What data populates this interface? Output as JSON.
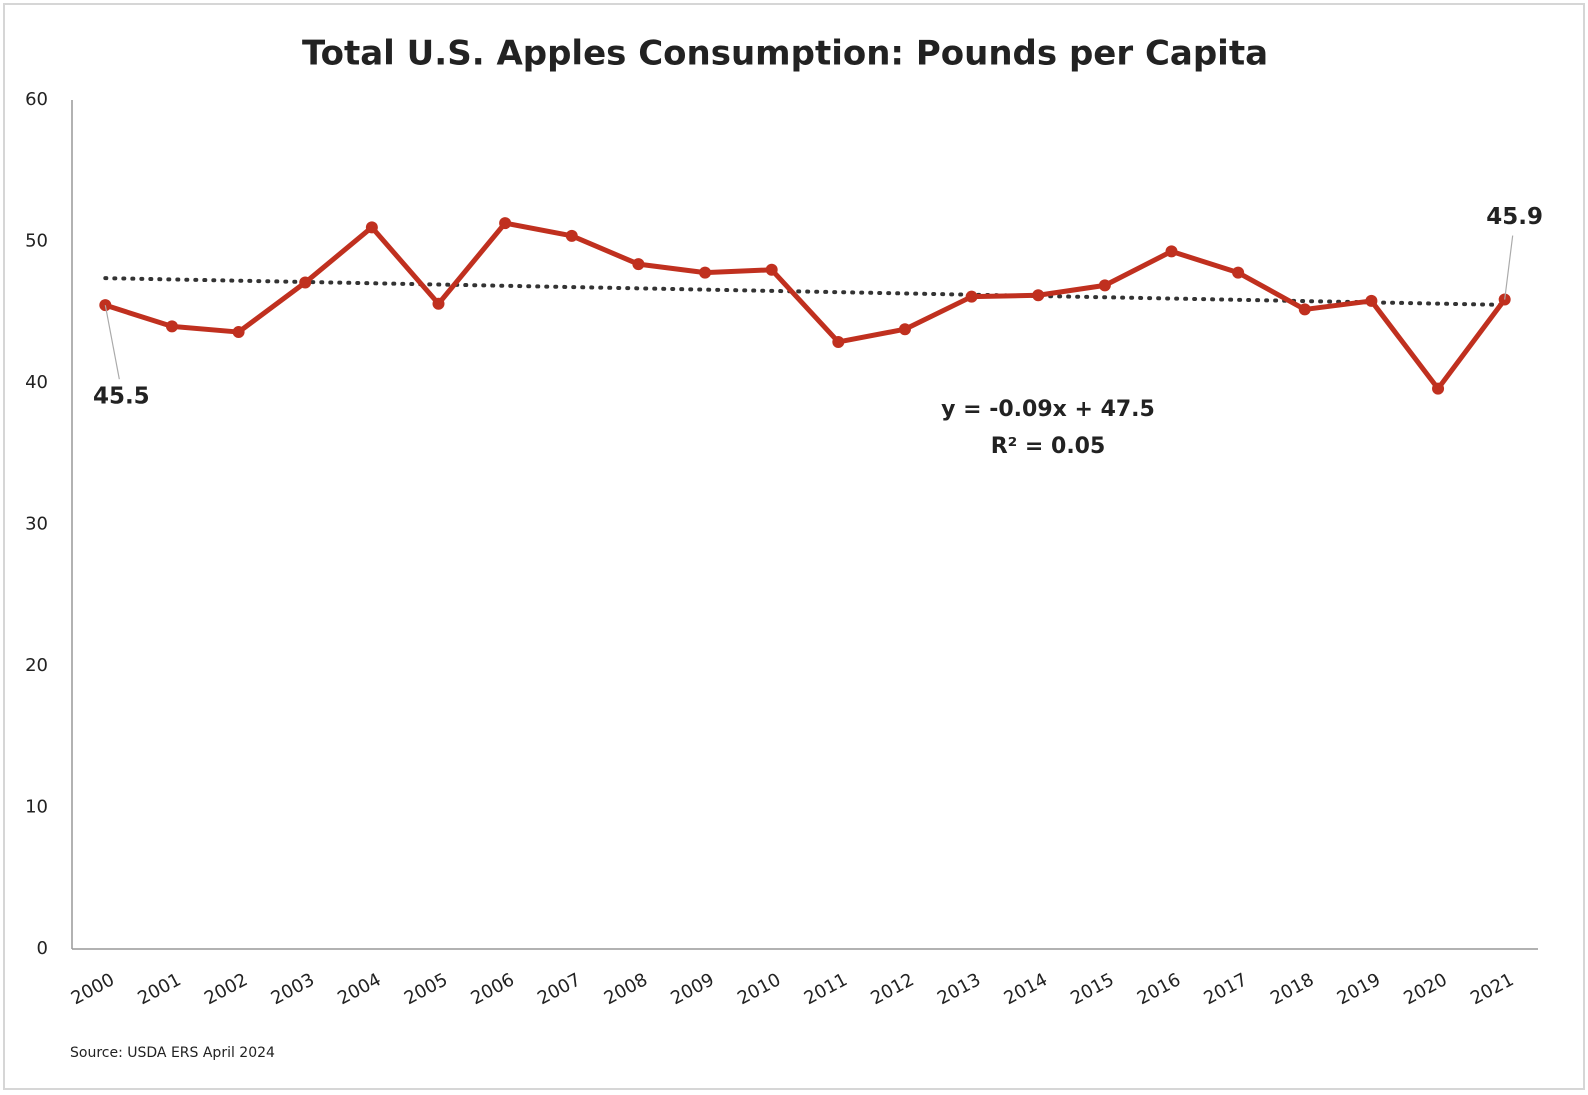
{
  "chart_data": {
    "type": "line",
    "title": "Total U.S. Apples Consumption: Pounds per Capita",
    "categories": [
      "2000",
      "2001",
      "2002",
      "2003",
      "2004",
      "2005",
      "2006",
      "2007",
      "2008",
      "2009",
      "2010",
      "2011",
      "2012",
      "2013",
      "2014",
      "2015",
      "2016",
      "2017",
      "2018",
      "2019",
      "2020",
      "2021"
    ],
    "series": [
      {
        "name": "Pounds per Capita",
        "color": "#c0301f",
        "values": [
          45.5,
          44.0,
          43.6,
          47.1,
          51.0,
          45.6,
          51.3,
          50.4,
          48.4,
          47.8,
          48.0,
          42.9,
          43.8,
          46.1,
          46.2,
          46.9,
          49.3,
          47.8,
          45.2,
          45.8,
          39.6,
          45.9
        ],
        "value_labels": [
          "45.5",
          null,
          null,
          null,
          null,
          null,
          null,
          null,
          null,
          null,
          null,
          null,
          null,
          null,
          null,
          null,
          null,
          null,
          null,
          null,
          null,
          "45.9"
        ]
      }
    ],
    "trendline": {
      "slope": -0.09,
      "intercept": 47.5,
      "color": "#333333"
    },
    "annotations": [
      "y = -0.09x + 47.5",
      "R² = 0.05"
    ],
    "ylim": [
      0,
      60
    ],
    "yticks": [
      0,
      10,
      20,
      30,
      40,
      50,
      60
    ],
    "grid": false,
    "source": "Source: USDA ERS April 2024"
  }
}
